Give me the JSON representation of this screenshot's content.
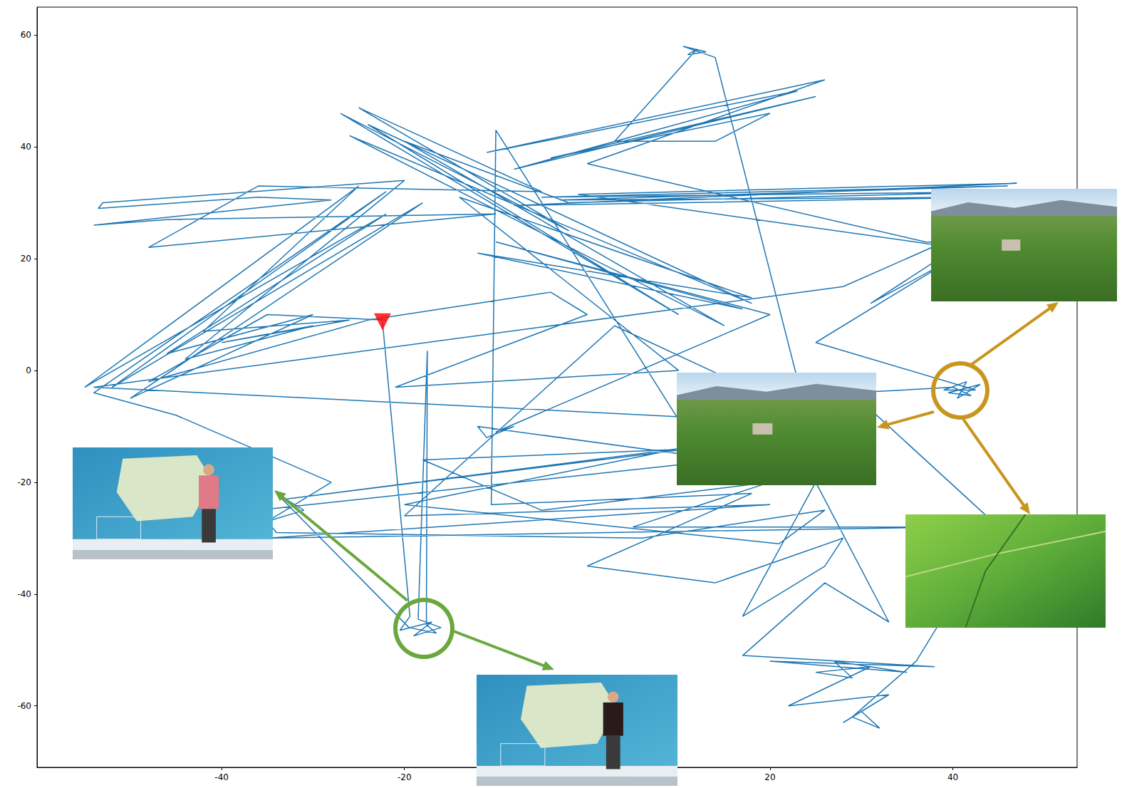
{
  "chart_data": {
    "type": "line",
    "grid": false,
    "xlim": [
      -60.2,
      53.6
    ],
    "ylim": [
      -71,
      65
    ],
    "xticks": [
      -40,
      -20,
      20,
      40
    ],
    "yticks": [
      -60,
      -40,
      -20,
      0,
      20,
      40,
      60
    ],
    "series": [
      {
        "type": "line",
        "color": "#1f77b4",
        "marker": "none",
        "line_style": "solid",
        "x": [
          -22.4,
          -19.4,
          -20.5,
          -17,
          -19,
          -16,
          -18.5,
          -17.5,
          -17.6,
          -16.5,
          -19.5,
          -34,
          -31,
          -35,
          -28,
          -45,
          -54,
          -22,
          -52,
          -18,
          -50,
          -30,
          -46,
          -22,
          -55,
          -25,
          -42,
          -26,
          -40,
          -30,
          -44,
          -20,
          -53,
          -53.5,
          -36,
          -28,
          -54,
          -46,
          -10,
          -48,
          -36,
          -5,
          -25,
          -2,
          -27,
          10,
          -24,
          18,
          -26,
          15,
          -20,
          -2,
          47,
          -5,
          46,
          -3,
          45,
          -8,
          47,
          -1,
          38,
          45,
          38,
          46,
          37,
          0,
          26,
          -11,
          23,
          -8,
          25,
          -4,
          20,
          14,
          3,
          12,
          11,
          13,
          10.5,
          14,
          24,
          3,
          -20,
          20,
          -35,
          40,
          5,
          20,
          -5,
          -18,
          12,
          -10,
          -10.5,
          18,
          0,
          14,
          28,
          26,
          17,
          25,
          33,
          26,
          17,
          38,
          20,
          35,
          27,
          29,
          25,
          31,
          22,
          33,
          28,
          30,
          32,
          29,
          36,
          45,
          29,
          40,
          42,
          39.5,
          43,
          40.5,
          41.5,
          39,
          42.5,
          25,
          40,
          31,
          46,
          28,
          -54,
          31,
          -33,
          10,
          -20,
          21,
          26,
          6,
          -34,
          -36,
          15,
          -12,
          -11,
          -8,
          -10,
          20,
          -10,
          17,
          -12,
          18,
          -14,
          10,
          -21,
          0,
          -4,
          -24,
          -48,
          -35,
          -22
        ],
        "y": [
          8.7,
          -44,
          -46.5,
          -45,
          -47.5,
          -46,
          -44.5,
          3.5,
          -45.5,
          -47,
          -46,
          -22,
          -25,
          -27,
          -20,
          -8,
          -4,
          32,
          -3,
          30,
          -5,
          10,
          3,
          28,
          -3,
          33,
          7,
          9,
          5,
          8,
          2,
          34,
          30,
          29,
          31,
          30.5,
          26,
          27,
          28,
          22,
          33,
          32,
          47,
          25,
          46,
          10,
          44,
          12,
          42,
          8,
          41,
          30,
          32,
          31,
          33,
          30.5,
          31,
          29.5,
          33.5,
          31.5,
          22.5,
          21,
          22,
          22.5,
          23,
          37,
          52,
          39,
          50,
          36,
          49,
          38,
          46,
          41,
          41,
          57.5,
          56.5,
          57,
          58,
          56,
          -8,
          8,
          -26,
          -24,
          -30,
          -28,
          -28,
          -20,
          -25,
          -16,
          -14,
          43,
          -24,
          -22,
          -35,
          -38,
          -30,
          -35,
          -44,
          -20,
          -45,
          -38,
          -51,
          -53,
          -52,
          -54,
          -52,
          -55,
          -54,
          -53,
          -60,
          -58,
          -63,
          -61,
          -64,
          -62,
          -52,
          -28,
          -4,
          -3,
          -4.5,
          -4,
          -2.5,
          -5,
          -2,
          -3.5,
          -3.5,
          5,
          20,
          12,
          28,
          15,
          -3,
          -10,
          -23,
          -14,
          -24,
          -31,
          -25,
          -30,
          -29,
          -25,
          -16,
          -10,
          -12,
          -10,
          -11,
          10,
          23,
          11,
          21,
          13,
          31,
          0,
          -3,
          10,
          14,
          9,
          -2,
          10,
          9
        ]
      },
      {
        "type": "scatter",
        "color": "#ff0000",
        "marker": "triangle_down",
        "x": [
          -22.4
        ],
        "y": [
          8.7
        ]
      }
    ]
  }
}
